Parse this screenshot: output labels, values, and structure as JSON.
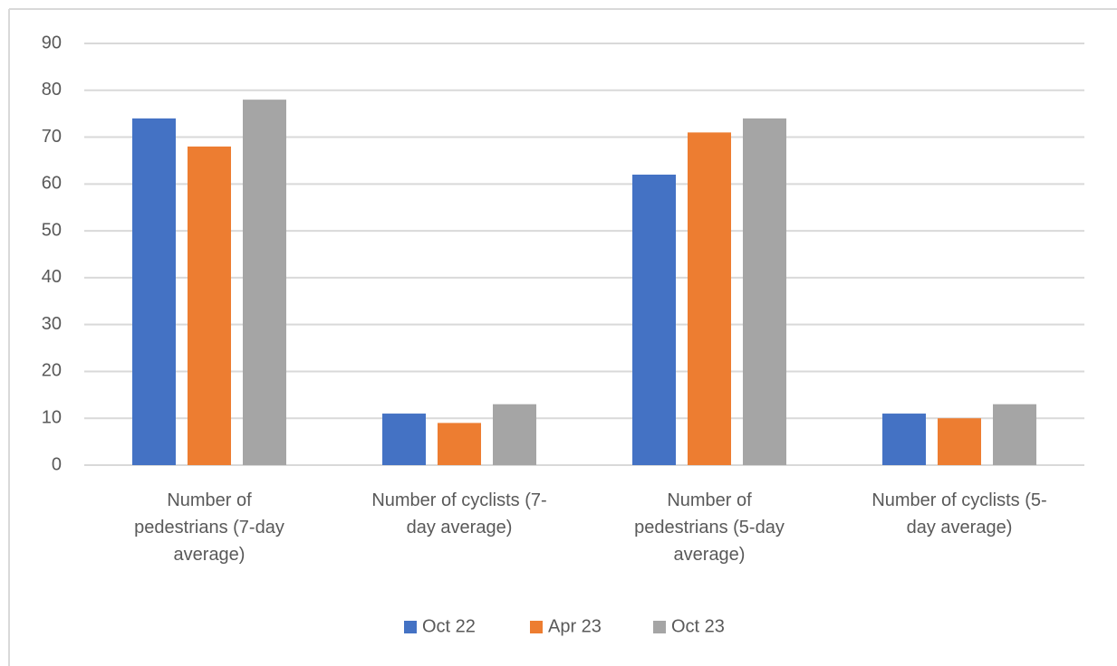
{
  "chart_data": {
    "type": "bar",
    "categories": [
      "Number of pedestrians (7-day average)",
      "Number of cyclists (7-day average)",
      "Number of pedestrians (5-day average)",
      "Number of cyclists (5-day average)"
    ],
    "series": [
      {
        "name": "Oct 22",
        "color": "#4472c4",
        "values": [
          74,
          11,
          62,
          11
        ]
      },
      {
        "name": "Apr 23",
        "color": "#ed7d31",
        "values": [
          68,
          9,
          71,
          10
        ]
      },
      {
        "name": "Oct 23",
        "color": "#a5a5a5",
        "values": [
          78,
          13,
          74,
          13
        ]
      }
    ],
    "ylim": [
      0,
      90
    ],
    "yticks": [
      0,
      10,
      20,
      30,
      40,
      50,
      60,
      70,
      80,
      90
    ],
    "grid": true,
    "legend": "bottom"
  }
}
